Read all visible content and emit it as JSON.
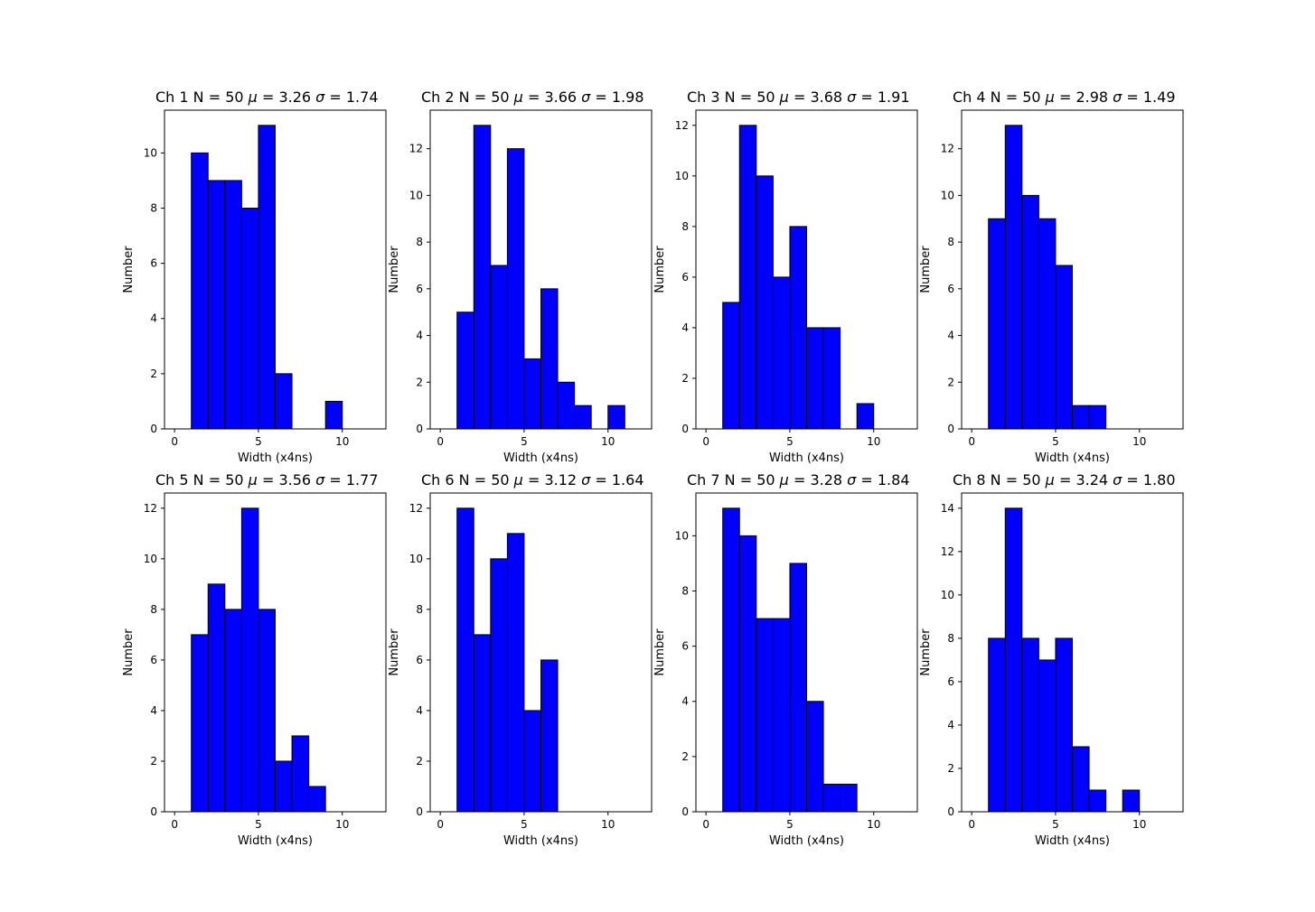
{
  "chart_data": [
    {
      "type": "bar",
      "title": {
        "channel": "Ch 1",
        "n_text": "N = 50",
        "mu_symbol": "μ",
        "mu_text": " = 3.26",
        "sigma_symbol": "σ",
        "sigma_text": " = 1.74"
      },
      "xlabel": "Width (x4ns)",
      "ylabel": "Number",
      "bin_edges": [
        0,
        1,
        2,
        3,
        4,
        5,
        6,
        7,
        8,
        9,
        10,
        11,
        12
      ],
      "values": [
        0,
        10,
        9,
        9,
        8,
        11,
        2,
        0,
        0,
        1,
        0,
        0
      ],
      "xlim": [
        -0.6,
        12.6
      ],
      "ylim": [
        0,
        11.55
      ],
      "xticks": [
        0,
        5,
        10
      ],
      "yticks": [
        0,
        2,
        4,
        6,
        8,
        10
      ],
      "bar_color": "#0000ff",
      "edge_color": "#000000",
      "grid": false
    },
    {
      "type": "bar",
      "title": {
        "channel": "Ch 2",
        "n_text": "N = 50",
        "mu_symbol": "μ",
        "mu_text": " = 3.66",
        "sigma_symbol": "σ",
        "sigma_text": " = 1.98"
      },
      "xlabel": "Width (x4ns)",
      "ylabel": "Number",
      "bin_edges": [
        0,
        1,
        2,
        3,
        4,
        5,
        6,
        7,
        8,
        9,
        10,
        11,
        12
      ],
      "values": [
        0,
        5,
        13,
        7,
        12,
        3,
        6,
        2,
        1,
        0,
        1,
        0
      ],
      "xlim": [
        -0.6,
        12.6
      ],
      "ylim": [
        0,
        13.65
      ],
      "xticks": [
        0,
        5,
        10
      ],
      "yticks": [
        0,
        2,
        4,
        6,
        8,
        10,
        12
      ],
      "bar_color": "#0000ff",
      "edge_color": "#000000",
      "grid": false
    },
    {
      "type": "bar",
      "title": {
        "channel": "Ch 3",
        "n_text": "N = 50",
        "mu_symbol": "μ",
        "mu_text": " = 3.68",
        "sigma_symbol": "σ",
        "sigma_text": " = 1.91"
      },
      "xlabel": "Width (x4ns)",
      "ylabel": "Number",
      "bin_edges": [
        0,
        1,
        2,
        3,
        4,
        5,
        6,
        7,
        8,
        9,
        10,
        11,
        12
      ],
      "values": [
        0,
        5,
        12,
        10,
        6,
        8,
        4,
        4,
        0,
        1,
        0,
        0
      ],
      "xlim": [
        -0.6,
        12.6
      ],
      "ylim": [
        0,
        12.6
      ],
      "xticks": [
        0,
        5,
        10
      ],
      "yticks": [
        0,
        2,
        4,
        6,
        8,
        10,
        12
      ],
      "bar_color": "#0000ff",
      "edge_color": "#000000",
      "grid": false
    },
    {
      "type": "bar",
      "title": {
        "channel": "Ch 4",
        "n_text": "N = 50",
        "mu_symbol": "μ",
        "mu_text": " = 2.98",
        "sigma_symbol": "σ",
        "sigma_text": " = 1.49"
      },
      "xlabel": "Width (x4ns)",
      "ylabel": "Number",
      "bin_edges": [
        0,
        1,
        2,
        3,
        4,
        5,
        6,
        7,
        8,
        9,
        10,
        11,
        12
      ],
      "values": [
        0,
        9,
        13,
        10,
        9,
        7,
        1,
        1,
        0,
        0,
        0,
        0
      ],
      "xlim": [
        -0.6,
        12.6
      ],
      "ylim": [
        0,
        13.65
      ],
      "xticks": [
        0,
        5,
        10
      ],
      "yticks": [
        0,
        2,
        4,
        6,
        8,
        10,
        12
      ],
      "bar_color": "#0000ff",
      "edge_color": "#000000",
      "grid": false
    },
    {
      "type": "bar",
      "title": {
        "channel": "Ch 5",
        "n_text": "N = 50",
        "mu_symbol": "μ",
        "mu_text": " = 3.56",
        "sigma_symbol": "σ",
        "sigma_text": " = 1.77"
      },
      "xlabel": "Width (x4ns)",
      "ylabel": "Number",
      "bin_edges": [
        0,
        1,
        2,
        3,
        4,
        5,
        6,
        7,
        8,
        9,
        10,
        11,
        12
      ],
      "values": [
        0,
        7,
        9,
        8,
        12,
        8,
        2,
        3,
        1,
        0,
        0,
        0
      ],
      "xlim": [
        -0.6,
        12.6
      ],
      "ylim": [
        0,
        12.6
      ],
      "xticks": [
        0,
        5,
        10
      ],
      "yticks": [
        0,
        2,
        4,
        6,
        8,
        10,
        12
      ],
      "bar_color": "#0000ff",
      "edge_color": "#000000",
      "grid": false
    },
    {
      "type": "bar",
      "title": {
        "channel": "Ch 6",
        "n_text": "N = 50",
        "mu_symbol": "μ",
        "mu_text": " = 3.12",
        "sigma_symbol": "σ",
        "sigma_text": " = 1.64"
      },
      "xlabel": "Width (x4ns)",
      "ylabel": "Number",
      "bin_edges": [
        0,
        1,
        2,
        3,
        4,
        5,
        6,
        7,
        8,
        9,
        10,
        11,
        12
      ],
      "values": [
        0,
        12,
        7,
        10,
        11,
        4,
        6,
        0,
        0,
        0,
        0,
        0
      ],
      "xlim": [
        -0.6,
        12.6
      ],
      "ylim": [
        0,
        12.6
      ],
      "xticks": [
        0,
        5,
        10
      ],
      "yticks": [
        0,
        2,
        4,
        6,
        8,
        10,
        12
      ],
      "bar_color": "#0000ff",
      "edge_color": "#000000",
      "grid": false
    },
    {
      "type": "bar",
      "title": {
        "channel": "Ch 7",
        "n_text": "N = 50",
        "mu_symbol": "μ",
        "mu_text": " = 3.28",
        "sigma_symbol": "σ",
        "sigma_text": " = 1.84"
      },
      "xlabel": "Width (x4ns)",
      "ylabel": "Number",
      "bin_edges": [
        0,
        1,
        2,
        3,
        4,
        5,
        6,
        7,
        8,
        9,
        10,
        11,
        12
      ],
      "values": [
        0,
        11,
        10,
        7,
        7,
        9,
        4,
        1,
        1,
        0,
        0,
        0
      ],
      "xlim": [
        -0.6,
        12.6
      ],
      "ylim": [
        0,
        11.55
      ],
      "xticks": [
        0,
        5,
        10
      ],
      "yticks": [
        0,
        2,
        4,
        6,
        8,
        10
      ],
      "bar_color": "#0000ff",
      "edge_color": "#000000",
      "grid": false
    },
    {
      "type": "bar",
      "title": {
        "channel": "Ch 8",
        "n_text": "N = 50",
        "mu_symbol": "μ",
        "mu_text": " = 3.24",
        "sigma_symbol": "σ",
        "sigma_text": " = 1.80"
      },
      "xlabel": "Width (x4ns)",
      "ylabel": "Number",
      "bin_edges": [
        0,
        1,
        2,
        3,
        4,
        5,
        6,
        7,
        8,
        9,
        10,
        11,
        12
      ],
      "values": [
        0,
        8,
        14,
        8,
        7,
        8,
        3,
        1,
        0,
        1,
        0,
        0
      ],
      "xlim": [
        -0.6,
        12.6
      ],
      "ylim": [
        0,
        14.7
      ],
      "xticks": [
        0,
        5,
        10
      ],
      "yticks": [
        0,
        2,
        4,
        6,
        8,
        10,
        12,
        14
      ],
      "bar_color": "#0000ff",
      "edge_color": "#000000",
      "grid": false
    }
  ]
}
